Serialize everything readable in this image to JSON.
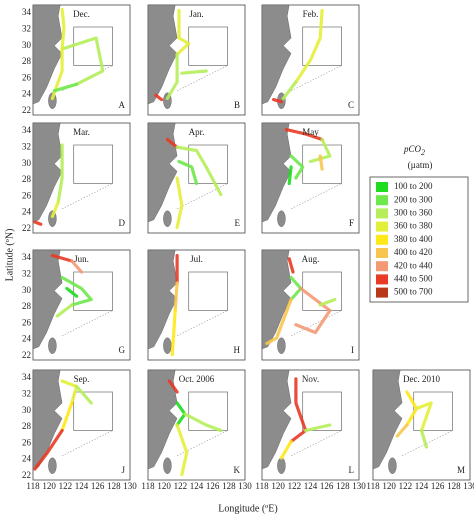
{
  "axis": {
    "y_label": "Latitude (ºN)",
    "x_label": "Longitude (ºE)",
    "lat_ticks": [
      "22",
      "24",
      "26",
      "28",
      "30",
      "32",
      "34"
    ],
    "lon_ticks": [
      "118",
      "120",
      "122",
      "124",
      "126",
      "128",
      "130"
    ]
  },
  "legend": {
    "title": "pCO",
    "title_sub": "2",
    "unit": "(µatm)",
    "items": [
      {
        "label": "100  to  200",
        "color": "#1fdc1f"
      },
      {
        "label": "200  to  300",
        "color": "#6ee84a"
      },
      {
        "label": "300  to  360",
        "color": "#b5ee5a"
      },
      {
        "label": "360  to  380",
        "color": "#e3f03a"
      },
      {
        "label": "380  to  400",
        "color": "#ffe81a"
      },
      {
        "label": "400  to  420",
        "color": "#f8c64e"
      },
      {
        "label": "420  to  440",
        "color": "#f39a74"
      },
      {
        "label": "440  to  500",
        "color": "#e83a24"
      },
      {
        "label": "500  to  700",
        "color": "#b8381a"
      }
    ]
  },
  "panels": [
    {
      "month": "Dec.",
      "letter": "A"
    },
    {
      "month": "Jan.",
      "letter": "B"
    },
    {
      "month": "Feb.",
      "letter": "C"
    },
    {
      "month": "Mar.",
      "letter": "D"
    },
    {
      "month": "Apr.",
      "letter": "E"
    },
    {
      "month": "May",
      "letter": "F"
    },
    {
      "month": "Jun.",
      "letter": "G"
    },
    {
      "month": "Jul.",
      "letter": "H"
    },
    {
      "month": "Aug.",
      "letter": "I"
    },
    {
      "month": "Sep.",
      "letter": "J"
    },
    {
      "month": "Oct. 2006",
      "letter": "K"
    },
    {
      "month": "Nov.",
      "letter": "L"
    },
    {
      "month": "Dec. 2010",
      "letter": "M"
    }
  ]
}
